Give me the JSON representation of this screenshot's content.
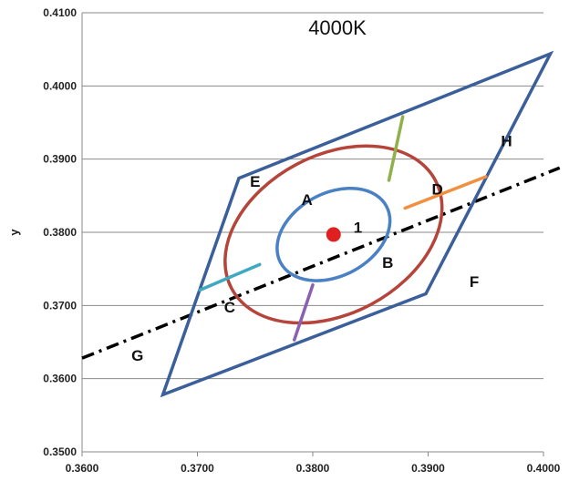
{
  "chart_data": {
    "type": "scatter",
    "title": "4000K",
    "xlabel": "",
    "ylabel": "y",
    "xlim": [
      0.36,
      0.4
    ],
    "ylim": [
      0.35,
      0.41
    ],
    "x_ticks": [
      "0.3600",
      "0.3700",
      "0.3800",
      "0.3900",
      "0.4000"
    ],
    "y_ticks": [
      "0.3500",
      "0.3600",
      "0.3700",
      "0.3800",
      "0.3900",
      "0.4000",
      "0.4100"
    ],
    "grid": "horizontal",
    "colors": {
      "quadrangle": "#3a5f9a",
      "outer_ellipse": "#b5443a",
      "inner_ellipse": "#4a80c4",
      "center_point": "#e02020",
      "dividers": [
        "#8fb04a",
        "#f09040",
        "#40a8c0",
        "#8a60b0"
      ],
      "blackbody_line": "#000000"
    },
    "quadrangle": [
      [
        0.3736,
        0.3874
      ],
      [
        0.4006,
        0.4044
      ],
      [
        0.3898,
        0.3716
      ],
      [
        0.367,
        0.3578
      ]
    ],
    "center": [
      0.3818,
      0.3797
    ],
    "center_label": "1",
    "inner_ellipse": {
      "cx": 0.3818,
      "cy": 0.3797,
      "rx": 0.0052,
      "ry": 0.0058,
      "rotation_deg": -28
    },
    "outer_ellipse": {
      "cx": 0.3818,
      "cy": 0.3797,
      "rx": 0.01,
      "ry": 0.0111,
      "rotation_deg": -28
    },
    "blackbody_line": [
      [
        0.36,
        0.3628
      ],
      [
        0.4014,
        0.3888
      ]
    ],
    "dividers": [
      {
        "from": [
          0.3866,
          0.3871
        ],
        "to": [
          0.3878,
          0.3958
        ]
      },
      {
        "from": [
          0.388,
          0.3833
        ],
        "to": [
          0.395,
          0.3876
        ]
      },
      {
        "from": [
          0.3702,
          0.3721
        ],
        "to": [
          0.3754,
          0.3756
        ]
      },
      {
        "from": [
          0.3784,
          0.3653
        ],
        "to": [
          0.38,
          0.3728
        ]
      }
    ],
    "region_labels": [
      {
        "text": "A",
        "x": 0.3795,
        "y": 0.3845
      },
      {
        "text": "B",
        "x": 0.3865,
        "y": 0.3759
      },
      {
        "text": "C",
        "x": 0.3728,
        "y": 0.3698
      },
      {
        "text": "D",
        "x": 0.3908,
        "y": 0.3859
      },
      {
        "text": "E",
        "x": 0.375,
        "y": 0.387
      },
      {
        "text": "F",
        "x": 0.394,
        "y": 0.3733
      },
      {
        "text": "G",
        "x": 0.3648,
        "y": 0.3632
      },
      {
        "text": "H",
        "x": 0.3968,
        "y": 0.3925
      }
    ]
  }
}
